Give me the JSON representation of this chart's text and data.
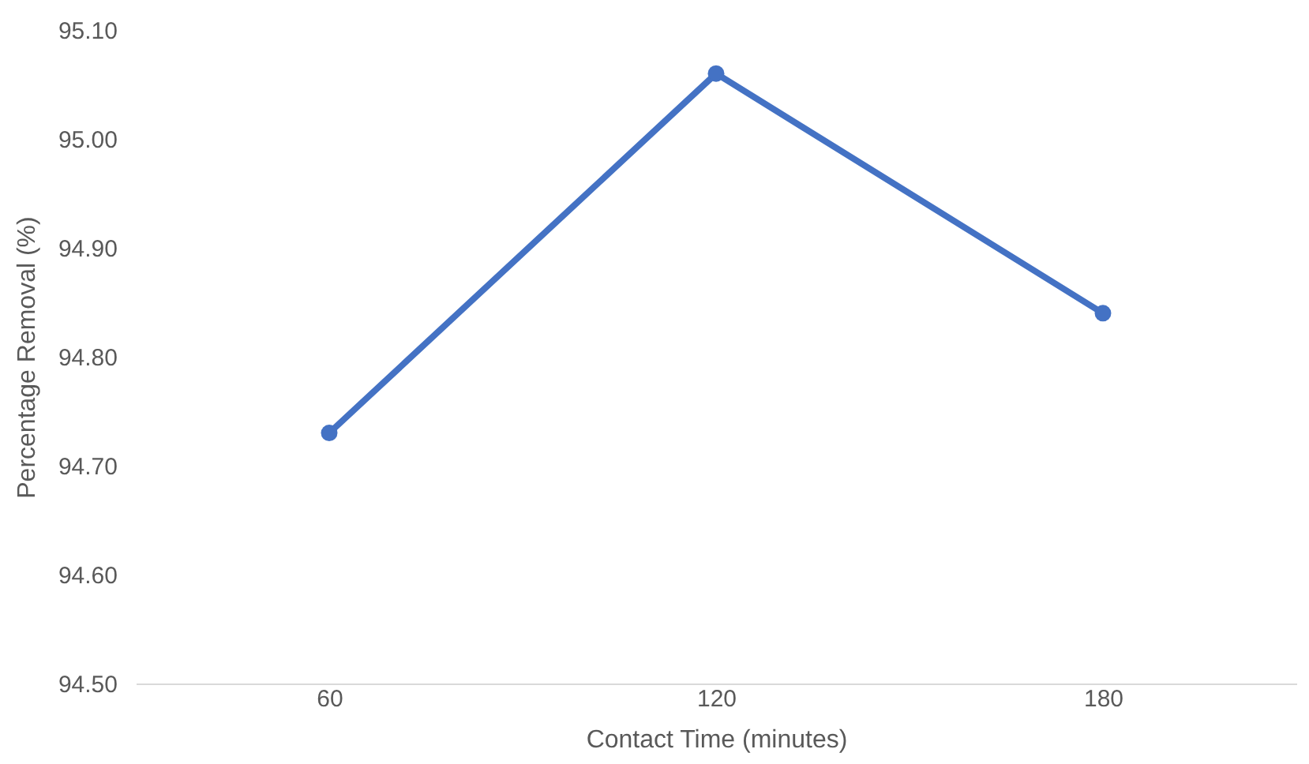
{
  "chart_data": {
    "type": "line",
    "xlabel": "Contact Time (minutes)",
    "ylabel": "Percentage Removal (%)",
    "categories": [
      "60",
      "120",
      "180"
    ],
    "series": [
      {
        "color": "#4472c4",
        "values": [
          94.73,
          95.06,
          94.84
        ]
      }
    ],
    "ylim": [
      94.5,
      95.1
    ],
    "yticks": [
      {
        "value": 94.5,
        "label": "94.50"
      },
      {
        "value": 94.6,
        "label": "94.60"
      },
      {
        "value": 94.7,
        "label": "94.70"
      },
      {
        "value": 94.8,
        "label": "94.80"
      },
      {
        "value": 94.9,
        "label": "94.90"
      },
      {
        "value": 95.0,
        "label": "95.00"
      },
      {
        "value": 95.1,
        "label": "95.10"
      }
    ],
    "marker": "circle",
    "line_style": "solid",
    "grid": false
  }
}
